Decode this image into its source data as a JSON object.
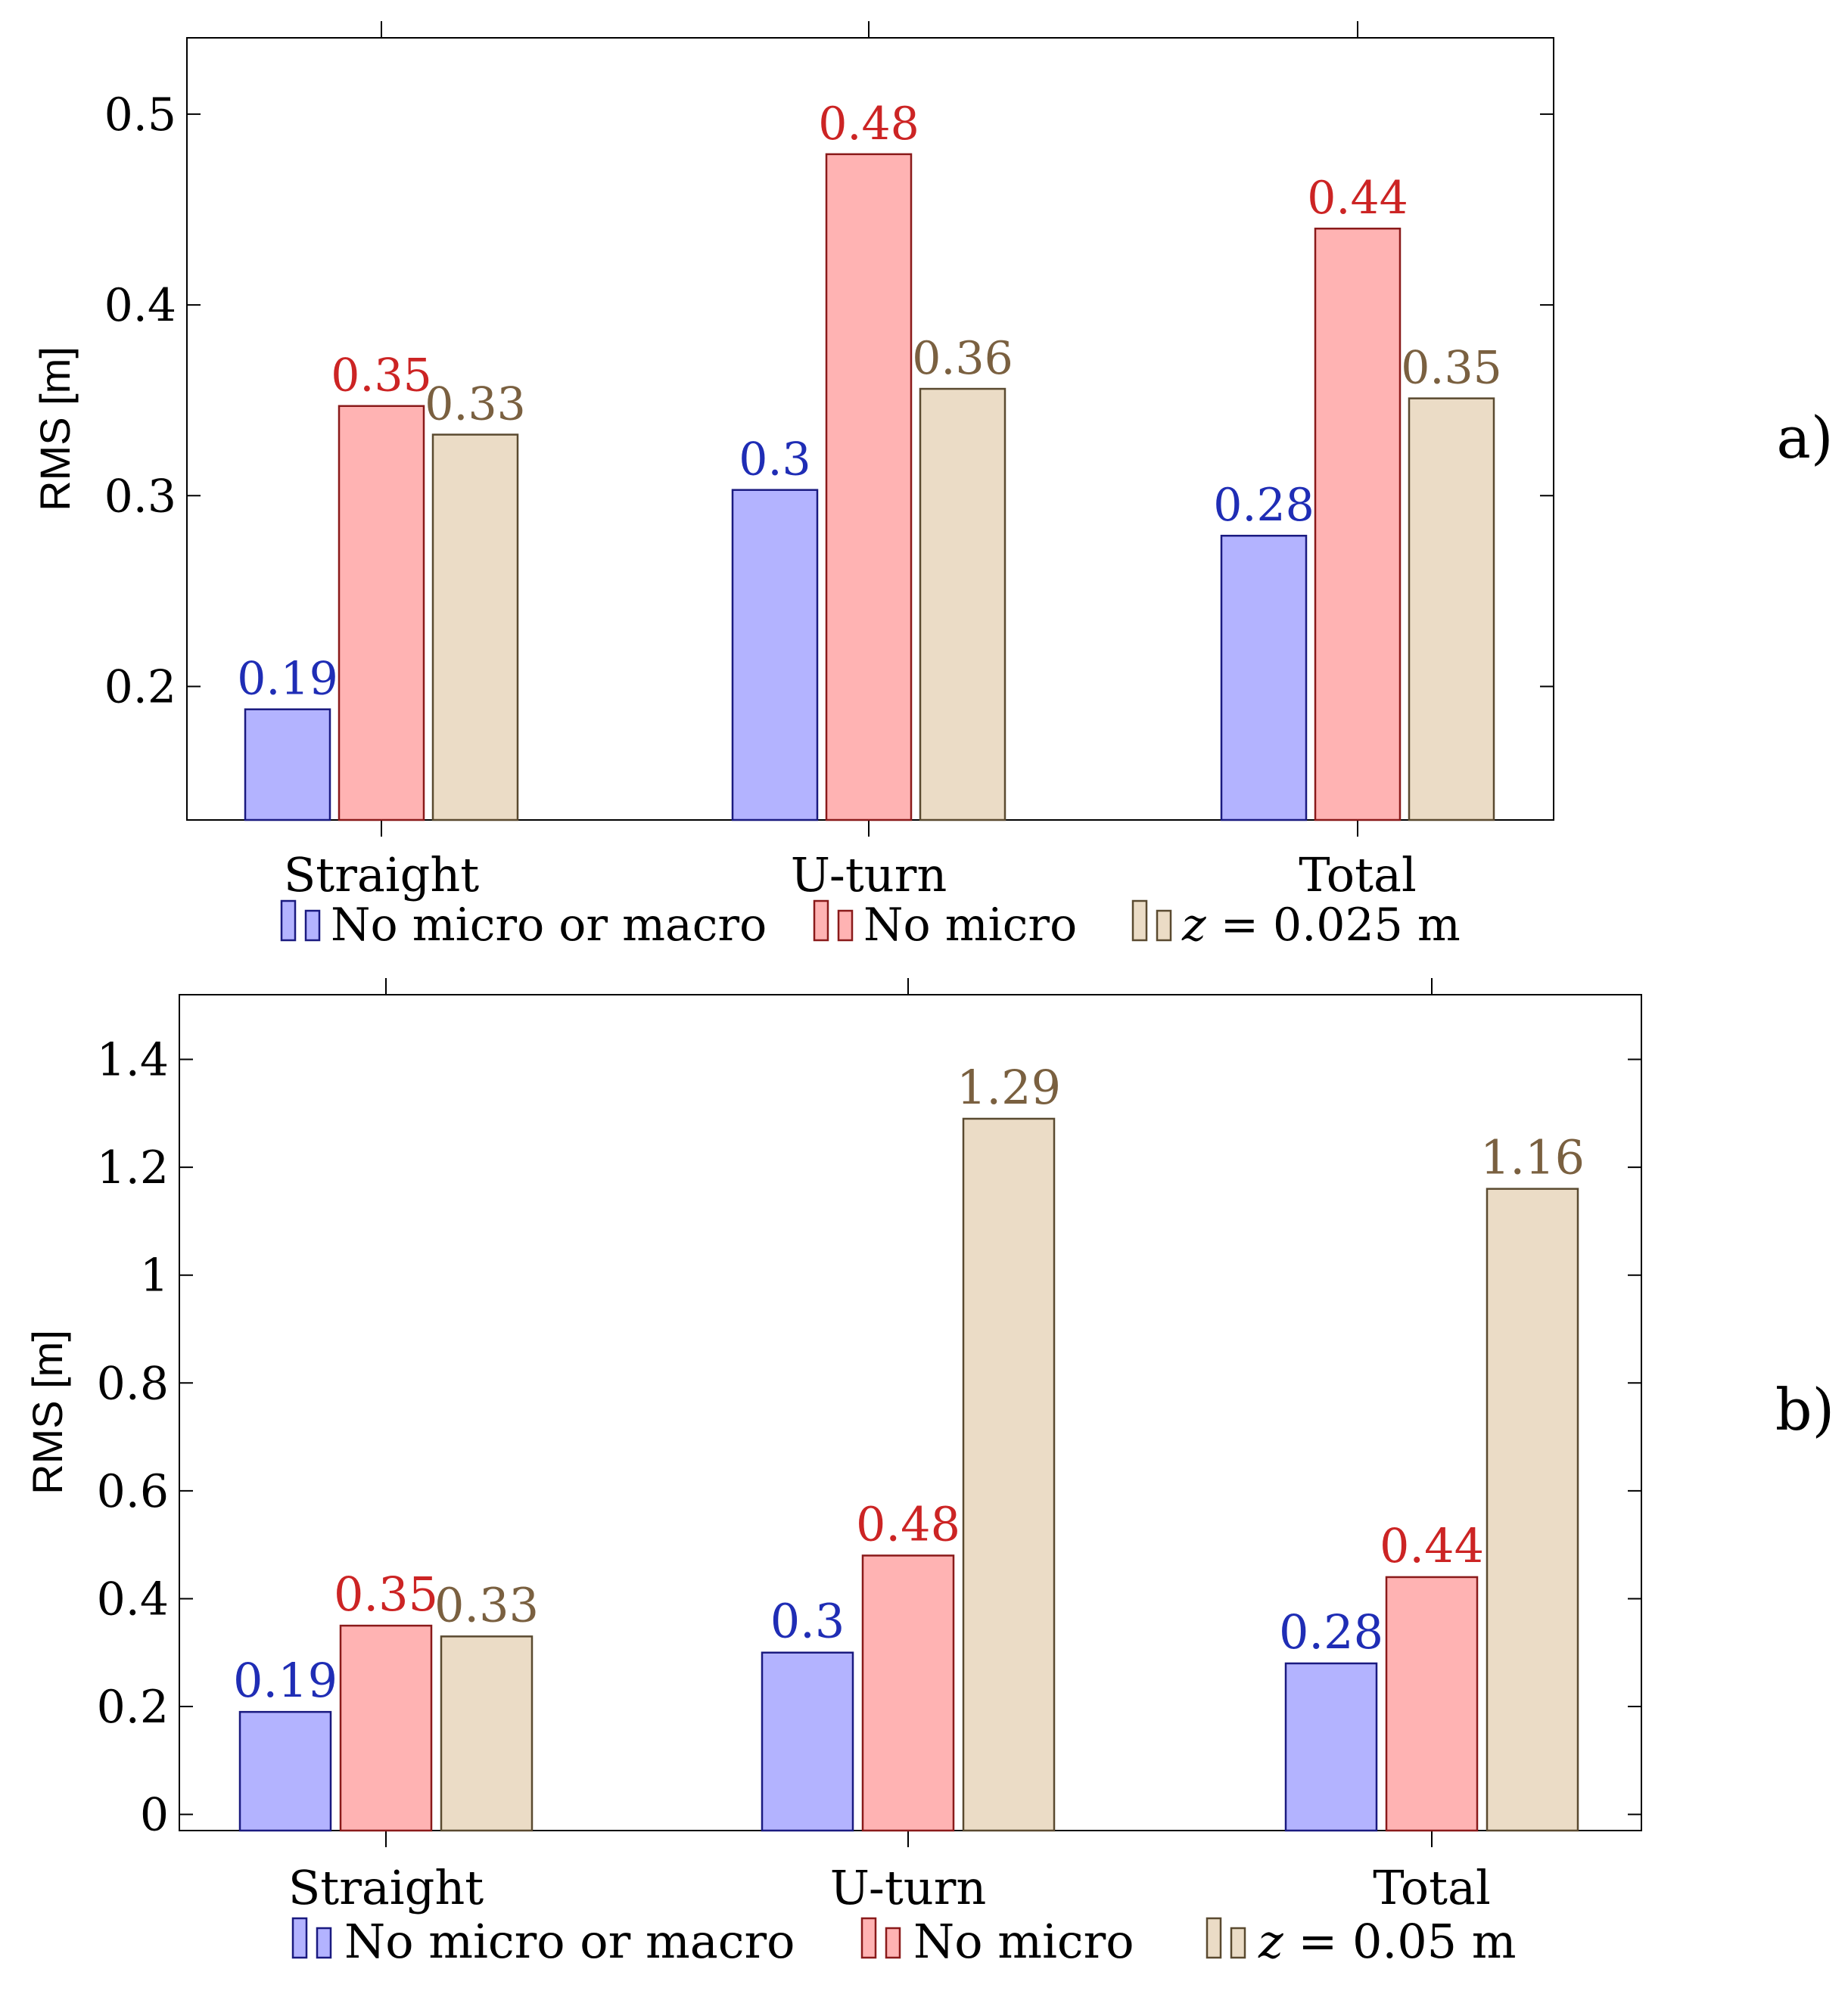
{
  "chart_data": [
    {
      "type": "bar",
      "panel_label": "a)",
      "ylabel": "RMS [m]",
      "ylim": [
        0.13,
        0.54
      ],
      "yticks": [
        "0.2",
        "0.3",
        "0.4",
        "0.5"
      ],
      "categories": [
        "Straight",
        "U-turn",
        "Total"
      ],
      "series": [
        {
          "name": "No micro or macro",
          "values": [
            0.19,
            0.3,
            0.28
          ],
          "labels": [
            "0.19",
            "0.3",
            "0.28"
          ],
          "fill": "#b3b3ff",
          "stroke": "#1a1a80",
          "label_color": "#1f2db5"
        },
        {
          "name": "No micro",
          "values": [
            0.35,
            0.48,
            0.44
          ],
          "labels": [
            "0.35",
            "0.48",
            "0.44"
          ],
          "fill": "#ffb3b3",
          "stroke": "#8a1a1a",
          "label_color": "#cc2424"
        },
        {
          "name_prefix": "z",
          "name": " = 0.025 m",
          "values": [
            0.33,
            0.36,
            0.35
          ],
          "labels": [
            "0.33",
            "0.36",
            "0.35"
          ],
          "fill": "#ebdcc6",
          "stroke": "#5a4a30",
          "label_color": "#7a6040"
        }
      ],
      "legend": [
        "No micro or macro",
        "No micro",
        "z = 0.025 m"
      ],
      "draw_values": [
        0.188,
        0.303,
        0.279,
        0.347,
        0.479,
        0.44,
        0.332,
        0.356,
        0.351
      ]
    },
    {
      "type": "bar",
      "panel_label": "b)",
      "ylabel": "RMS [m]",
      "ylim": [
        -0.03,
        1.52
      ],
      "yticks": [
        "0",
        "0.2",
        "0.4",
        "0.6",
        "0.8",
        "1",
        "1.2",
        "1.4"
      ],
      "categories": [
        "Straight",
        "U-turn",
        "Total"
      ],
      "series": [
        {
          "name": "No micro or macro",
          "values": [
            0.19,
            0.3,
            0.28
          ],
          "labels": [
            "0.19",
            "0.3",
            "0.28"
          ],
          "fill": "#b3b3ff",
          "stroke": "#1a1a80",
          "label_color": "#1f2db5"
        },
        {
          "name": "No micro",
          "values": [
            0.35,
            0.48,
            0.44
          ],
          "labels": [
            "0.35",
            "0.48",
            "0.44"
          ],
          "fill": "#ffb3b3",
          "stroke": "#8a1a1a",
          "label_color": "#cc2424"
        },
        {
          "name_prefix": "z",
          "name": " = 0.05 m",
          "values": [
            0.33,
            1.29,
            1.16
          ],
          "labels": [
            "0.33",
            "1.29",
            "1.16"
          ],
          "fill": "#ebdcc6",
          "stroke": "#5a4a30",
          "label_color": "#7a6040"
        }
      ],
      "legend": [
        "No micro or macro",
        "No micro",
        "z = 0.05 m"
      ],
      "draw_values": [
        0.19,
        0.3,
        0.28,
        0.35,
        0.48,
        0.44,
        0.33,
        1.29,
        1.16
      ]
    }
  ]
}
